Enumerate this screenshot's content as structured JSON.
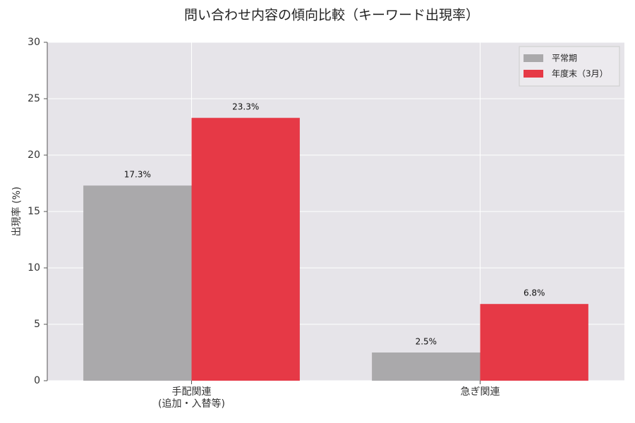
{
  "chart_data": {
    "type": "bar",
    "title": "問い合わせ内容の傾向比較（キーワード出現率）",
    "y_label": "出現率 (%)",
    "categories": [
      "手配関連\n(追加・入替等)",
      "急ぎ関連"
    ],
    "series": [
      {
        "name": "平常期",
        "color": "#aaa9ab",
        "values": [
          17.3,
          2.5
        ],
        "value_labels": [
          "17.3%",
          "2.5%"
        ]
      },
      {
        "name": "年度末（3月）",
        "color": "#e63946",
        "values": [
          23.3,
          6.8
        ],
        "value_labels": [
          "23.3%",
          "6.8%"
        ]
      }
    ],
    "ylim": [
      0,
      30
    ],
    "yticks": [
      0,
      5,
      10,
      15,
      20,
      25,
      30
    ],
    "grid": true,
    "legend": "upper right"
  }
}
